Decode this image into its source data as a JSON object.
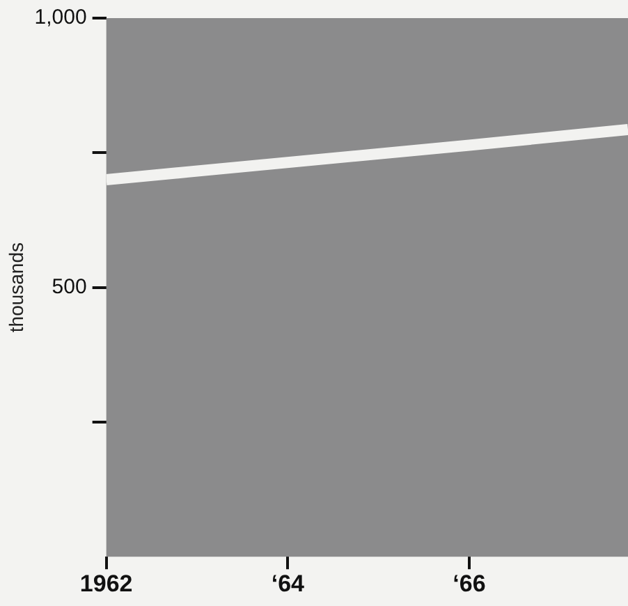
{
  "chart_data": {
    "type": "line",
    "ylabel": "thousands",
    "x": [
      "1962",
      "1966",
      "1967-10"
    ],
    "series": [
      {
        "color": "#f2f2f0",
        "values": [
          700,
          764,
          793
        ]
      }
    ],
    "xlim": [
      "1962",
      "1967-10"
    ],
    "xticks": [
      {
        "value": "1962",
        "label": "1962"
      },
      {
        "value": "1964",
        "label": "‘64"
      },
      {
        "value": "1966",
        "label": "‘66"
      }
    ],
    "ylim": [
      0,
      1000
    ],
    "yticks": [
      {
        "value": 0,
        "label": null
      },
      {
        "value": 250,
        "label": null
      },
      {
        "value": 500,
        "label": "500"
      },
      {
        "value": 750,
        "label": null
      },
      {
        "value": 1000,
        "label": "1,000"
      }
    ],
    "grid": false,
    "legend": false,
    "marker": "none",
    "line_style": "solid"
  }
}
